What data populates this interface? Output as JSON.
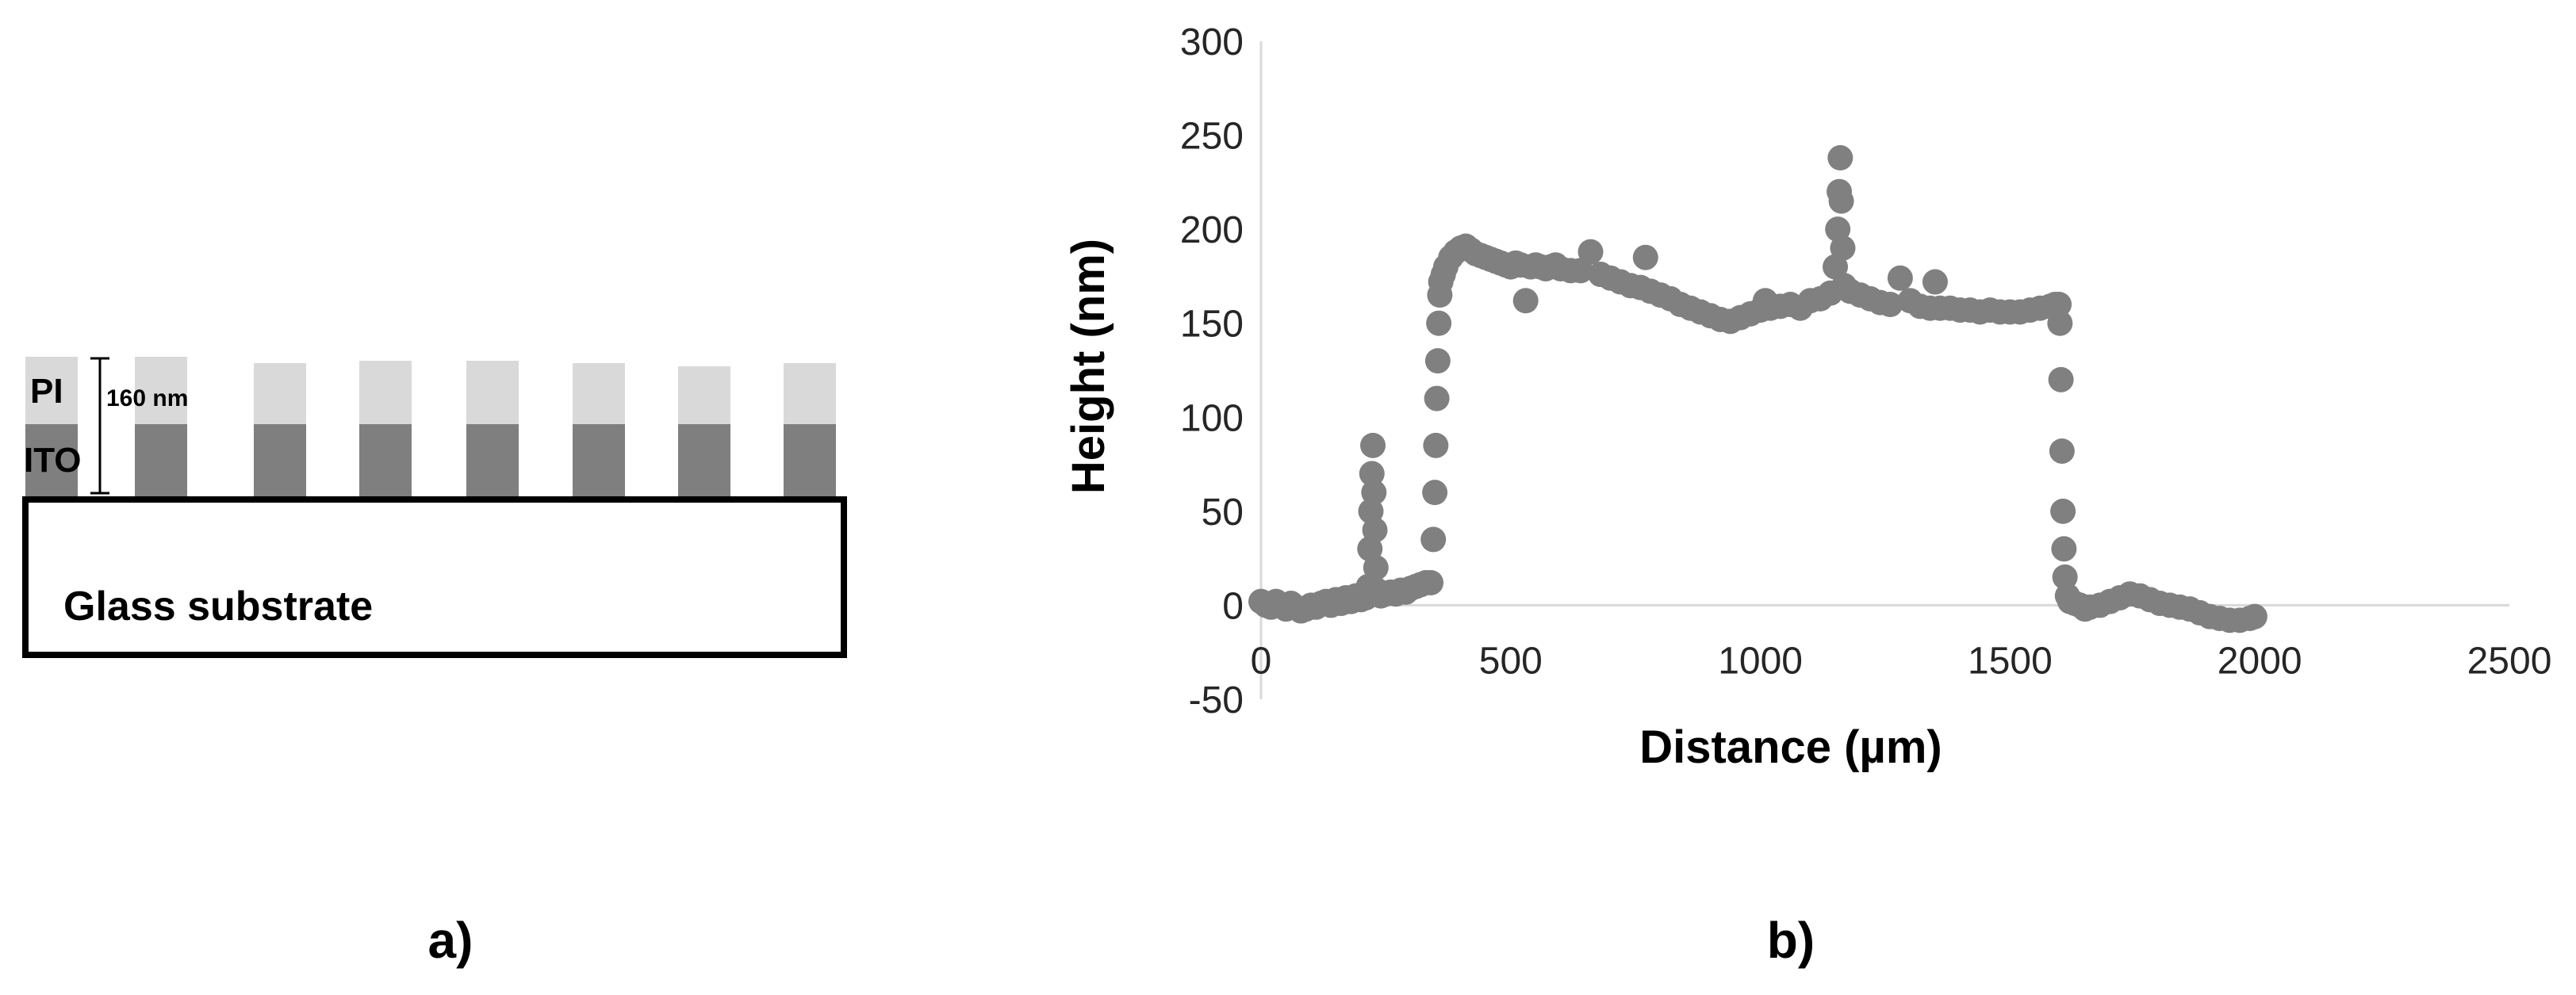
{
  "panel_a": {
    "label": "a)",
    "layers": {
      "pi": "PI",
      "ito": "ITO",
      "substrate": "Glass substrate"
    },
    "thickness_label": "160 nm",
    "colors": {
      "pi": "#d9d9d9",
      "ito": "#7f7f7f",
      "substrate_fill": "#ffffff",
      "outline": "#000000"
    },
    "stripe_count": 8
  },
  "panel_b": {
    "label": "b)"
  },
  "chart_data": {
    "type": "scatter",
    "xlabel": "Distance (µm)",
    "ylabel": "Height (nm)",
    "xlim": [
      0,
      2500
    ],
    "ylim": [
      -50,
      300
    ],
    "xticks": [
      0,
      500,
      1000,
      1500,
      2000,
      2500
    ],
    "yticks": [
      -50,
      0,
      50,
      100,
      150,
      200,
      250,
      300
    ],
    "grid": false,
    "marker_color": "#808080",
    "series": [
      {
        "points": [
          [
            0,
            2
          ],
          [
            10,
            0
          ],
          [
            20,
            -1
          ],
          [
            30,
            2
          ],
          [
            40,
            0
          ],
          [
            50,
            -2
          ],
          [
            60,
            1
          ],
          [
            70,
            -1
          ],
          [
            80,
            -3
          ],
          [
            90,
            -2
          ],
          [
            100,
            0
          ],
          [
            110,
            -1
          ],
          [
            120,
            1
          ],
          [
            130,
            2
          ],
          [
            140,
            0
          ],
          [
            150,
            3
          ],
          [
            160,
            1
          ],
          [
            170,
            4
          ],
          [
            180,
            2
          ],
          [
            190,
            5
          ],
          [
            200,
            3
          ],
          [
            210,
            4
          ],
          [
            215,
            10
          ],
          [
            218,
            30
          ],
          [
            220,
            50
          ],
          [
            222,
            70
          ],
          [
            224,
            85
          ],
          [
            226,
            60
          ],
          [
            228,
            40
          ],
          [
            230,
            20
          ],
          [
            232,
            8
          ],
          [
            240,
            5
          ],
          [
            250,
            6
          ],
          [
            260,
            7
          ],
          [
            270,
            6
          ],
          [
            280,
            8
          ],
          [
            290,
            7
          ],
          [
            300,
            9
          ],
          [
            310,
            10
          ],
          [
            320,
            11
          ],
          [
            330,
            12
          ],
          [
            340,
            12
          ],
          [
            345,
            35
          ],
          [
            348,
            60
          ],
          [
            350,
            85
          ],
          [
            352,
            110
          ],
          [
            354,
            130
          ],
          [
            356,
            150
          ],
          [
            358,
            165
          ],
          [
            360,
            172
          ],
          [
            365,
            176
          ],
          [
            370,
            180
          ],
          [
            380,
            185
          ],
          [
            390,
            188
          ],
          [
            400,
            190
          ],
          [
            410,
            191
          ],
          [
            420,
            189
          ],
          [
            430,
            187
          ],
          [
            440,
            186
          ],
          [
            450,
            185
          ],
          [
            460,
            184
          ],
          [
            470,
            183
          ],
          [
            480,
            182
          ],
          [
            490,
            181
          ],
          [
            500,
            180
          ],
          [
            510,
            182
          ],
          [
            520,
            181
          ],
          [
            530,
            162
          ],
          [
            540,
            180
          ],
          [
            550,
            181
          ],
          [
            560,
            180
          ],
          [
            570,
            179
          ],
          [
            580,
            180
          ],
          [
            590,
            181
          ],
          [
            600,
            179
          ],
          [
            620,
            178
          ],
          [
            640,
            178
          ],
          [
            660,
            188
          ],
          [
            680,
            176
          ],
          [
            700,
            174
          ],
          [
            720,
            172
          ],
          [
            740,
            170
          ],
          [
            760,
            169
          ],
          [
            770,
            185
          ],
          [
            780,
            167
          ],
          [
            800,
            165
          ],
          [
            820,
            163
          ],
          [
            840,
            160
          ],
          [
            860,
            158
          ],
          [
            880,
            156
          ],
          [
            900,
            154
          ],
          [
            920,
            152
          ],
          [
            940,
            151
          ],
          [
            960,
            153
          ],
          [
            980,
            155
          ],
          [
            1000,
            157
          ],
          [
            1010,
            162
          ],
          [
            1020,
            158
          ],
          [
            1040,
            159
          ],
          [
            1060,
            160
          ],
          [
            1080,
            158
          ],
          [
            1100,
            162
          ],
          [
            1120,
            163
          ],
          [
            1140,
            166
          ],
          [
            1150,
            180
          ],
          [
            1155,
            200
          ],
          [
            1158,
            220
          ],
          [
            1160,
            238
          ],
          [
            1162,
            215
          ],
          [
            1165,
            190
          ],
          [
            1168,
            170
          ],
          [
            1180,
            167
          ],
          [
            1200,
            165
          ],
          [
            1220,
            163
          ],
          [
            1240,
            161
          ],
          [
            1260,
            160
          ],
          [
            1280,
            174
          ],
          [
            1300,
            162
          ],
          [
            1320,
            159
          ],
          [
            1340,
            158
          ],
          [
            1350,
            172
          ],
          [
            1360,
            158
          ],
          [
            1380,
            158
          ],
          [
            1400,
            157
          ],
          [
            1420,
            157
          ],
          [
            1440,
            156
          ],
          [
            1460,
            157
          ],
          [
            1480,
            156
          ],
          [
            1500,
            156
          ],
          [
            1520,
            156
          ],
          [
            1540,
            157
          ],
          [
            1560,
            158
          ],
          [
            1580,
            159
          ],
          [
            1590,
            160
          ],
          [
            1598,
            160
          ],
          [
            1600,
            150
          ],
          [
            1602,
            120
          ],
          [
            1604,
            82
          ],
          [
            1606,
            50
          ],
          [
            1608,
            30
          ],
          [
            1610,
            15
          ],
          [
            1615,
            5
          ],
          [
            1620,
            2
          ],
          [
            1630,
            1
          ],
          [
            1640,
            0
          ],
          [
            1650,
            -2
          ],
          [
            1660,
            -1
          ],
          [
            1680,
            0
          ],
          [
            1700,
            2
          ],
          [
            1720,
            4
          ],
          [
            1740,
            6
          ],
          [
            1760,
            5
          ],
          [
            1780,
            3
          ],
          [
            1800,
            1
          ],
          [
            1820,
            0
          ],
          [
            1840,
            -1
          ],
          [
            1860,
            -2
          ],
          [
            1880,
            -4
          ],
          [
            1900,
            -6
          ],
          [
            1920,
            -7
          ],
          [
            1940,
            -8
          ],
          [
            1960,
            -8
          ],
          [
            1980,
            -7
          ],
          [
            1990,
            -6
          ]
        ]
      }
    ]
  }
}
